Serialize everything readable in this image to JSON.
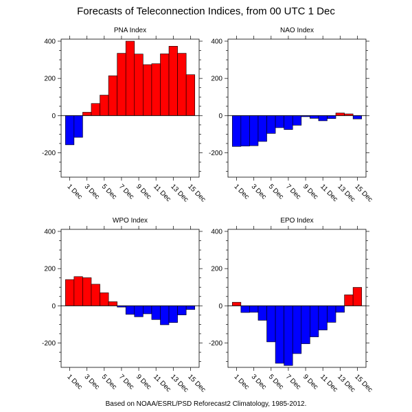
{
  "title": "Forecasts of Teleconnection Indices, from 00 UTC 1 Dec",
  "footer": "Based on NOAA/ESRL/PSD Reforecast2 Climatology, 1985-2012.",
  "colors": {
    "positive": "#ff0000",
    "negative": "#0000ff"
  },
  "chart_data": [
    {
      "type": "bar",
      "title": "PNA Index",
      "categories": [
        "1 Dec",
        "2 Dec",
        "3 Dec",
        "4 Dec",
        "5 Dec",
        "6 Dec",
        "7 Dec",
        "8 Dec",
        "9 Dec",
        "10 Dec",
        "11 Dec",
        "12 Dec",
        "13 Dec",
        "14 Dec",
        "15 Dec"
      ],
      "tick_labels": [
        "1 Dec",
        "3 Dec",
        "5 Dec",
        "7 Dec",
        "9 Dec",
        "11 Dec",
        "13 Dec",
        "15 Dec"
      ],
      "values": [
        -157,
        -117,
        18,
        65,
        110,
        214,
        335,
        400,
        331,
        274,
        279,
        332,
        373,
        335,
        220
      ],
      "yticks": [
        -200,
        0,
        200,
        400
      ],
      "ylim": [
        -331,
        411
      ],
      "grid": false
    },
    {
      "type": "bar",
      "title": "NAO Index",
      "categories": [
        "1 Dec",
        "2 Dec",
        "3 Dec",
        "4 Dec",
        "5 Dec",
        "6 Dec",
        "7 Dec",
        "8 Dec",
        "9 Dec",
        "10 Dec",
        "11 Dec",
        "12 Dec",
        "13 Dec",
        "14 Dec",
        "15 Dec"
      ],
      "tick_labels": [
        "1 Dec",
        "3 Dec",
        "5 Dec",
        "7 Dec",
        "9 Dec",
        "11 Dec",
        "13 Dec",
        "15 Dec"
      ],
      "values": [
        -166,
        -164,
        -162,
        -139,
        -96,
        -65,
        -75,
        -52,
        -6,
        -15,
        -28,
        -16,
        14,
        9,
        -18
      ],
      "yticks": [
        -200,
        0,
        200,
        400
      ],
      "ylim": [
        -331,
        411
      ],
      "grid": false
    },
    {
      "type": "bar",
      "title": "WPO Index",
      "categories": [
        "1 Dec",
        "2 Dec",
        "3 Dec",
        "4 Dec",
        "5 Dec",
        "6 Dec",
        "7 Dec",
        "8 Dec",
        "9 Dec",
        "10 Dec",
        "11 Dec",
        "12 Dec",
        "13 Dec",
        "14 Dec",
        "15 Dec"
      ],
      "tick_labels": [
        "1 Dec",
        "3 Dec",
        "5 Dec",
        "7 Dec",
        "9 Dec",
        "11 Dec",
        "13 Dec",
        "15 Dec"
      ],
      "values": [
        141,
        157,
        151,
        116,
        70,
        22,
        -7,
        -46,
        -59,
        -43,
        -74,
        -102,
        -90,
        -49,
        -20
      ],
      "yticks": [
        -200,
        0,
        200,
        400
      ],
      "ylim": [
        -331,
        411
      ],
      "grid": false
    },
    {
      "type": "bar",
      "title": "EPO Index",
      "categories": [
        "1 Dec",
        "2 Dec",
        "3 Dec",
        "4 Dec",
        "5 Dec",
        "6 Dec",
        "7 Dec",
        "8 Dec",
        "9 Dec",
        "10 Dec",
        "11 Dec",
        "12 Dec",
        "13 Dec",
        "14 Dec",
        "15 Dec"
      ],
      "tick_labels": [
        "1 Dec",
        "3 Dec",
        "5 Dec",
        "7 Dec",
        "9 Dec",
        "11 Dec",
        "13 Dec",
        "15 Dec"
      ],
      "values": [
        19,
        -36,
        -35,
        -78,
        -194,
        -309,
        -321,
        -257,
        -204,
        -167,
        -130,
        -89,
        -35,
        59,
        99
      ],
      "yticks": [
        -200,
        0,
        200,
        400
      ],
      "ylim": [
        -331,
        411
      ],
      "grid": false
    }
  ]
}
